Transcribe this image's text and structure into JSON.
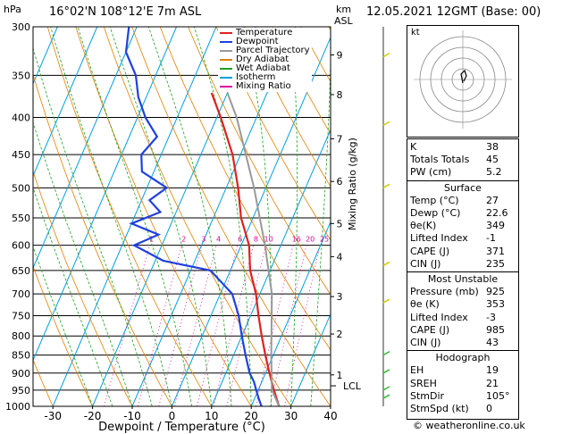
{
  "header": {
    "location": "16°02'N  108°12'E  7m  ASL",
    "datetime": "12.05.2021  12GMT  (Base: 00)",
    "hpa_label": "hPa",
    "km_label": "km",
    "asl_label": "ASL",
    "mixing_ratio_label": "Mixing Ratio (g/kg)",
    "lcl_label": "LCL",
    "footer": "© weatheronline.co.uk",
    "hodo_label": "kt"
  },
  "legend": [
    {
      "label": "Temperature",
      "color": "#e02020"
    },
    {
      "label": "Dewpoint",
      "color": "#2040e0"
    },
    {
      "label": "Parcel Trajectory",
      "color": "#999999"
    },
    {
      "label": "Dry Adiabat",
      "color": "#e08000"
    },
    {
      "label": "Wet Adiabat",
      "color": "#20a020"
    },
    {
      "label": "Isotherm",
      "color": "#00a0e0"
    },
    {
      "label": "Mixing Ratio",
      "color": "#e000a0"
    }
  ],
  "chart_data": {
    "type": "line",
    "title": "",
    "xlabel": "Dewpoint / Temperature (°C)",
    "ylabel": "hPa",
    "xlim": [
      -35,
      40
    ],
    "ylim": [
      1000,
      300
    ],
    "log_y": true,
    "skew": true,
    "x_ticks": [
      "-30",
      "-20",
      "-10",
      "0",
      "10",
      "20",
      "30",
      "40"
    ],
    "pressure_levels": [
      300,
      350,
      400,
      450,
      500,
      550,
      600,
      650,
      700,
      750,
      800,
      850,
      900,
      950,
      1000
    ],
    "km_ticks": [
      {
        "km": "1",
        "p": 905
      },
      {
        "km": "2",
        "p": 795
      },
      {
        "km": "3",
        "p": 706
      },
      {
        "km": "4",
        "p": 622
      },
      {
        "km": "5",
        "p": 560
      },
      {
        "km": "6",
        "p": 490
      },
      {
        "km": "7",
        "p": 428
      },
      {
        "km": "8",
        "p": 372
      },
      {
        "km": "9",
        "p": 328
      }
    ],
    "mixing_ratio_labels": [
      "1",
      "2",
      "3",
      "4",
      "6",
      "8",
      "10",
      "16",
      "20",
      "25"
    ],
    "series": [
      {
        "name": "Temperature",
        "color": "#e02020",
        "points": [
          {
            "p": 1000,
            "t": 27
          },
          {
            "p": 975,
            "t": 25.5
          },
          {
            "p": 950,
            "t": 24
          },
          {
            "p": 925,
            "t": 22.5
          },
          {
            "p": 900,
            "t": 21
          },
          {
            "p": 850,
            "t": 18
          },
          {
            "p": 800,
            "t": 15
          },
          {
            "p": 750,
            "t": 12
          },
          {
            "p": 700,
            "t": 9
          },
          {
            "p": 650,
            "t": 5
          },
          {
            "p": 600,
            "t": 2
          },
          {
            "p": 550,
            "t": -3
          },
          {
            "p": 500,
            "t": -7
          },
          {
            "p": 450,
            "t": -12
          },
          {
            "p": 400,
            "t": -19
          },
          {
            "p": 370,
            "t": -24
          }
        ]
      },
      {
        "name": "Dewpoint",
        "color": "#2040e0",
        "points": [
          {
            "p": 1000,
            "t": 22.6
          },
          {
            "p": 975,
            "t": 21
          },
          {
            "p": 950,
            "t": 19.5
          },
          {
            "p": 925,
            "t": 18
          },
          {
            "p": 900,
            "t": 16
          },
          {
            "p": 850,
            "t": 13
          },
          {
            "p": 800,
            "t": 10
          },
          {
            "p": 750,
            "t": 7
          },
          {
            "p": 700,
            "t": 3
          },
          {
            "p": 650,
            "t": -5
          },
          {
            "p": 630,
            "t": -18
          },
          {
            "p": 600,
            "t": -27
          },
          {
            "p": 580,
            "t": -22
          },
          {
            "p": 560,
            "t": -30
          },
          {
            "p": 540,
            "t": -24
          },
          {
            "p": 520,
            "t": -28
          },
          {
            "p": 500,
            "t": -25
          },
          {
            "p": 475,
            "t": -33
          },
          {
            "p": 450,
            "t": -35
          },
          {
            "p": 425,
            "t": -33
          },
          {
            "p": 400,
            "t": -38
          },
          {
            "p": 375,
            "t": -42
          },
          {
            "p": 350,
            "t": -45
          },
          {
            "p": 325,
            "t": -50
          },
          {
            "p": 300,
            "t": -52
          }
        ]
      },
      {
        "name": "Parcel Trajectory",
        "color": "#999999",
        "points": [
          {
            "p": 1000,
            "t": 27
          },
          {
            "p": 950,
            "t": 23.5
          },
          {
            "p": 925,
            "t": 22.5
          },
          {
            "p": 850,
            "t": 19.5
          },
          {
            "p": 700,
            "t": 13
          },
          {
            "p": 600,
            "t": 6
          },
          {
            "p": 500,
            "t": -3
          },
          {
            "p": 400,
            "t": -15
          },
          {
            "p": 370,
            "t": -20
          }
        ]
      }
    ]
  },
  "table": {
    "top": [
      {
        "k": "K",
        "v": "38"
      },
      {
        "k": "Totals Totals",
        "v": "45"
      },
      {
        "k": "PW (cm)",
        "v": "5.2"
      }
    ],
    "surface_title": "Surface",
    "surface": [
      {
        "k": "Temp (°C)",
        "v": "27"
      },
      {
        "k": "Dewp (°C)",
        "v": "22.6"
      },
      {
        "k": "θe(K)",
        "v": "349"
      },
      {
        "k": "Lifted Index",
        "v": "-1"
      },
      {
        "k": "CAPE (J)",
        "v": "371"
      },
      {
        "k": "CIN (J)",
        "v": "235"
      }
    ],
    "mu_title": "Most Unstable",
    "mu": [
      {
        "k": "Pressure (mb)",
        "v": "925"
      },
      {
        "k": "θe (K)",
        "v": "353"
      },
      {
        "k": "Lifted Index",
        "v": "-3"
      },
      {
        "k": "CAPE (J)",
        "v": "985"
      },
      {
        "k": "CIN (J)",
        "v": "43"
      }
    ],
    "hodo_title": "Hodograph",
    "hodo": [
      {
        "k": "EH",
        "v": "19"
      },
      {
        "k": "SREH",
        "v": "21"
      },
      {
        "k": "StmDir",
        "v": "105°"
      },
      {
        "k": "StmSpd (kt)",
        "v": "0"
      }
    ]
  }
}
